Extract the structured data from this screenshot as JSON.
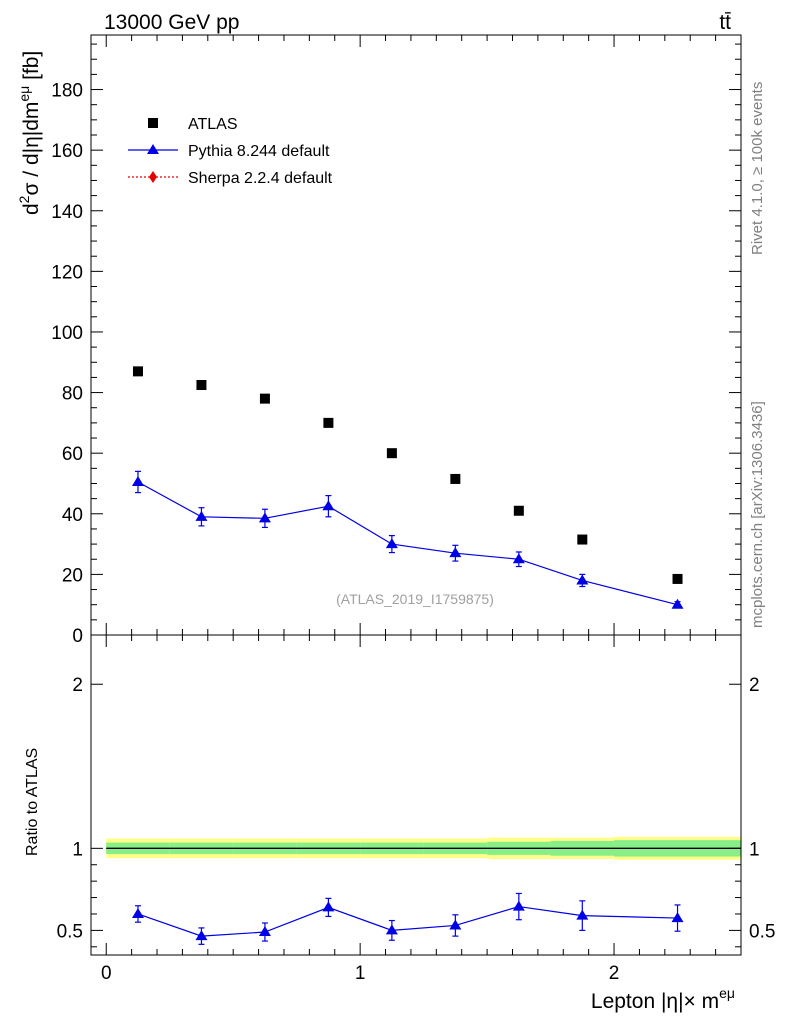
{
  "chart_data": {
    "type": "scatter",
    "energy_label": "13000 GeV pp",
    "process_label": "tt̄",
    "watermark": "(ATLAS_2019_I1759875)",
    "side_rivet": "Rivet 4.1.0, ≥ 100k events",
    "side_mcplots": "mcplots.cern.ch [arXiv:1306.3436]",
    "ylabel": "d²σ / d|η|dm^eμ [fb]",
    "ylabel_parts": {
      "d": "d",
      "two": "2",
      "rest": "σ / d|η|dm",
      "sup": "eμ",
      "unit": " [fb]"
    },
    "ratio_ylabel": "Ratio to ATLAS",
    "xlabel_parts": {
      "main": "Lepton |η|× m",
      "sup": "eμ"
    },
    "xlim": [
      -0.06,
      2.5
    ],
    "ylim": [
      0,
      198
    ],
    "ratio_ylim": [
      0.35,
      2.3
    ],
    "x_ticks": [
      "0",
      "1",
      "2"
    ],
    "y_ticks": [
      "0",
      "20",
      "40",
      "60",
      "80",
      "100",
      "120",
      "140",
      "160",
      "180"
    ],
    "ratio_ticks": [
      "0.5",
      "1",
      "2"
    ],
    "legend": [
      {
        "label": "ATLAS",
        "color": "#000000"
      },
      {
        "label": "Pythia 8.244 default",
        "color": "#0000e6"
      },
      {
        "label": "Sherpa 2.2.4 default",
        "color": "#e60000"
      }
    ],
    "x": [
      0.125,
      0.375,
      0.625,
      0.875,
      1.125,
      1.375,
      1.625,
      1.875,
      2.25
    ],
    "series": [
      {
        "name": "ATLAS",
        "values": [
          87.0,
          82.5,
          78.0,
          70.0,
          60.0,
          51.5,
          41.0,
          31.5,
          18.5
        ]
      },
      {
        "name": "Pythia 8.244 default",
        "values": [
          50.5,
          39.0,
          38.5,
          42.5,
          30.0,
          27.0,
          25.0,
          18.0,
          10.0
        ],
        "errors": [
          3.5,
          3.0,
          3.0,
          3.5,
          2.8,
          2.6,
          2.4,
          2.0,
          1.0
        ]
      },
      {
        "name": "Sherpa 2.2.4 default",
        "values": []
      }
    ],
    "ratio": {
      "name": "Pythia 8.244 default",
      "values": [
        0.6,
        0.465,
        0.49,
        0.64,
        0.5,
        0.53,
        0.645,
        0.59,
        0.575
      ],
      "errors": [
        0.05,
        0.05,
        0.055,
        0.055,
        0.06,
        0.065,
        0.08,
        0.09,
        0.08
      ]
    },
    "band": {
      "bins": [
        0,
        0.25,
        0.5,
        0.75,
        1.0,
        1.25,
        1.5,
        1.75,
        2.0,
        2.5
      ],
      "green": [
        0.035,
        0.035,
        0.035,
        0.035,
        0.035,
        0.035,
        0.04,
        0.045,
        0.05
      ],
      "yellow": [
        0.06,
        0.06,
        0.06,
        0.06,
        0.06,
        0.06,
        0.065,
        0.065,
        0.07
      ]
    }
  }
}
